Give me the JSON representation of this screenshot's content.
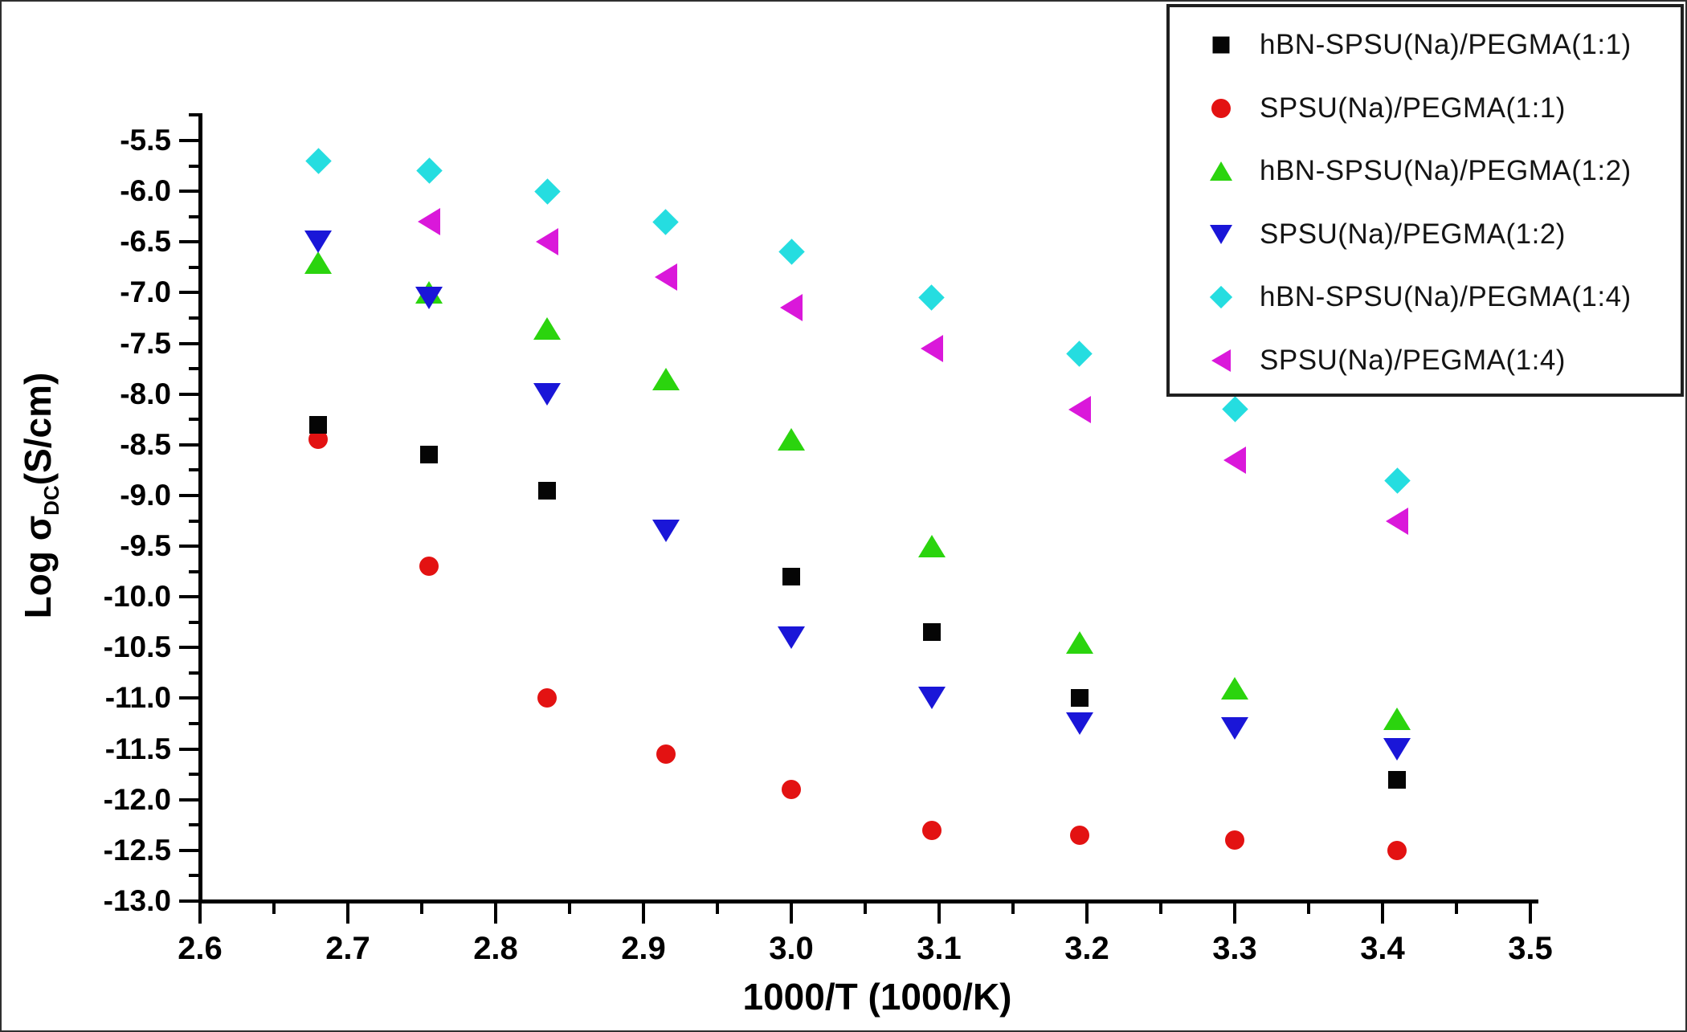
{
  "chart_data": {
    "type": "scatter",
    "title": "",
    "xlabel": "1000/T (1000/K)",
    "ylabel": "Log σDC(S/cm)",
    "ylabel_parts": {
      "prefix": "Log σ",
      "subscript": "DC",
      "suffix": "(S/cm)"
    },
    "xlim": [
      2.6,
      3.5
    ],
    "ylim": [
      -13.0,
      -5.25
    ],
    "grid": false,
    "legend_position": "top-right",
    "x_major_ticks": [
      "2.6",
      "2.7",
      "2.8",
      "2.9",
      "3.0",
      "3.1",
      "3.2",
      "3.3",
      "3.4",
      "3.5"
    ],
    "y_major_ticks": [
      "-5.5",
      "-6.0",
      "-6.5",
      "-7.0",
      "-7.5",
      "-8.0",
      "-8.5",
      "-9.0",
      "-9.5",
      "-10.0",
      "-10.5",
      "-11.0",
      "-11.5",
      "-12.0",
      "-12.5",
      "-13.0"
    ],
    "series": [
      {
        "name": "SPSU(Na)/PEGMA(1:1)",
        "marker": "circle",
        "color": "#e31212",
        "points": [
          [
            2.68,
            -8.45
          ],
          [
            2.755,
            -9.7
          ],
          [
            2.835,
            -11.0
          ],
          [
            2.915,
            -11.55
          ],
          [
            3.0,
            -11.9
          ],
          [
            3.095,
            -12.3
          ],
          [
            3.195,
            -12.35
          ],
          [
            3.3,
            -12.4
          ],
          [
            3.41,
            -12.5
          ]
        ]
      },
      {
        "name": "hBN-SPSU(Na)/PEGMA(1:2)",
        "marker": "tri-up",
        "color": "#2bd40e",
        "points": [
          [
            2.68,
            -6.7
          ],
          [
            2.755,
            -7.0
          ],
          [
            2.835,
            -7.35
          ],
          [
            2.915,
            -7.85
          ],
          [
            3.0,
            -8.45
          ],
          [
            3.095,
            -9.5
          ],
          [
            3.195,
            -10.45
          ],
          [
            3.3,
            -10.9
          ],
          [
            3.41,
            -11.2
          ]
        ]
      },
      {
        "name": "hBN-SPSU(Na)/PEGMA(1:1)",
        "marker": "square",
        "color": "#050505",
        "points": [
          [
            2.68,
            -8.3
          ],
          [
            2.755,
            -8.6
          ],
          [
            2.835,
            -8.95
          ],
          [
            3.0,
            -9.8
          ],
          [
            3.095,
            -10.35
          ],
          [
            3.195,
            -11.0
          ],
          [
            3.41,
            -11.8
          ]
        ]
      },
      {
        "name": "SPSU(Na)/PEGMA(1:2)",
        "marker": "tri-down",
        "color": "#1a16d8",
        "points": [
          [
            2.68,
            -6.5
          ],
          [
            2.755,
            -7.05
          ],
          [
            2.835,
            -8.0
          ],
          [
            2.915,
            -9.35
          ],
          [
            3.0,
            -10.4
          ],
          [
            3.095,
            -11.0
          ],
          [
            3.195,
            -11.25
          ],
          [
            3.3,
            -11.3
          ],
          [
            3.41,
            -11.5
          ]
        ]
      },
      {
        "name": "hBN-SPSU(Na)/PEGMA(1:4)",
        "marker": "diamond",
        "color": "#25dde0",
        "points": [
          [
            2.68,
            -5.7
          ],
          [
            2.755,
            -5.8
          ],
          [
            2.835,
            -6.0
          ],
          [
            2.915,
            -6.3
          ],
          [
            3.0,
            -6.6
          ],
          [
            3.095,
            -7.05
          ],
          [
            3.195,
            -7.6
          ],
          [
            3.3,
            -8.15
          ],
          [
            3.41,
            -8.85
          ]
        ]
      },
      {
        "name": "SPSU(Na)/PEGMA(1:4)",
        "marker": "tri-left",
        "color": "#da18da",
        "points": [
          [
            2.755,
            -6.3
          ],
          [
            2.835,
            -6.5
          ],
          [
            2.915,
            -6.85
          ],
          [
            3.0,
            -7.15
          ],
          [
            3.095,
            -7.55
          ],
          [
            3.195,
            -8.15
          ],
          [
            3.3,
            -8.65
          ],
          [
            3.41,
            -9.25
          ]
        ]
      }
    ],
    "legend_order": [
      "hBN-SPSU(Na)/PEGMA(1:1)",
      "SPSU(Na)/PEGMA(1:1)",
      "hBN-SPSU(Na)/PEGMA(1:2)",
      "SPSU(Na)/PEGMA(1:2)",
      "hBN-SPSU(Na)/PEGMA(1:4)",
      "SPSU(Na)/PEGMA(1:4)"
    ]
  }
}
